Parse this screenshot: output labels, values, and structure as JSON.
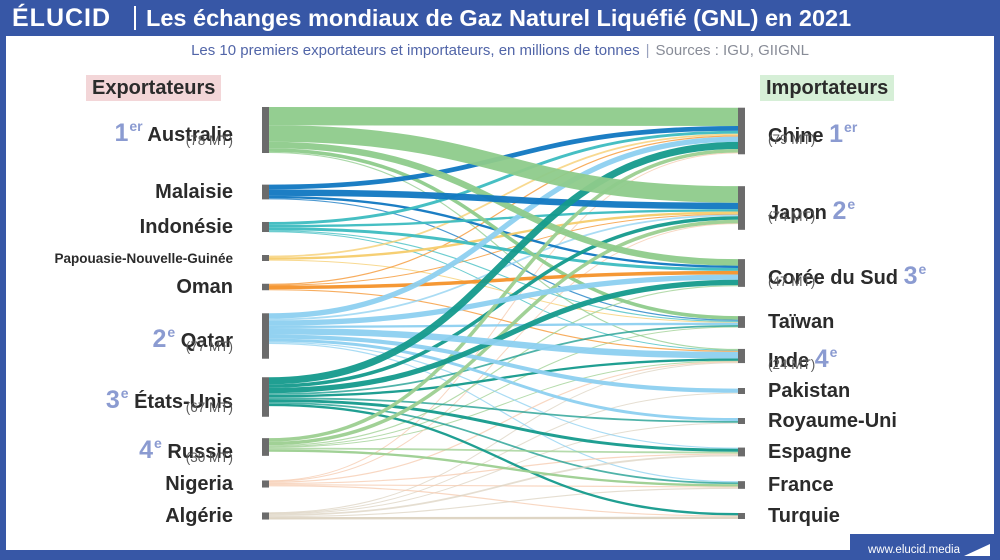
{
  "header": {
    "logo": "ÉLUCID",
    "title": "Les échanges mondiaux de Gaz Naturel Liquéfié (GNL) en 2021",
    "subtitle": "Les 10 premiers exportateurs et importateurs, en millions de tonnes",
    "sources": "Sources : IGU, GIIGNL"
  },
  "column_headers": {
    "exporters": "Exportateurs",
    "importers": "Importateurs"
  },
  "exporters": [
    {
      "name": "Australie",
      "rank": "1",
      "rank_sup": "er",
      "sub": "(78 MT)",
      "value": 78,
      "color": "#8ecb8b"
    },
    {
      "name": "Malaisie",
      "value": 25,
      "color": "#1077c1"
    },
    {
      "name": "Indonésie",
      "value": 17,
      "color": "#3cbcc0"
    },
    {
      "name": "Papouasie-Nouvelle-Guinée",
      "value": 8,
      "color": "#f6cc6b"
    },
    {
      "name": "Oman",
      "value": 11,
      "color": "#f4922a"
    },
    {
      "name": "Qatar",
      "rank": "2",
      "rank_sup": "e",
      "sub": "(77 MT)",
      "value": 77,
      "color": "#8dd0f0"
    },
    {
      "name": "États-Unis",
      "rank": "3",
      "rank_sup": "e",
      "sub": "(67 MT)",
      "value": 67,
      "color": "#149a8c"
    },
    {
      "name": "Russie",
      "rank": "4",
      "rank_sup": "e",
      "sub": "(30 MT)",
      "value": 30,
      "color": "#9ccf90"
    },
    {
      "name": "Nigeria",
      "value": 12,
      "color": "#f6c9ad"
    },
    {
      "name": "Algérie",
      "value": 12,
      "color": "#dcd3c1"
    }
  ],
  "importers": [
    {
      "name": "Chine",
      "rank": "1",
      "rank_sup": "er",
      "sub": "(79 MT)",
      "value": 79
    },
    {
      "name": "Japon",
      "rank": "2",
      "rank_sup": "e",
      "sub": "(74 MT)",
      "value": 74
    },
    {
      "name": "Corée du Sud",
      "rank": "3",
      "rank_sup": "e",
      "sub": "(47 MT)",
      "value": 47
    },
    {
      "name": "Taïwan",
      "value": 20
    },
    {
      "name": "Inde",
      "rank": "4",
      "rank_sup": "e",
      "sub": "(24 MT)",
      "value": 24
    },
    {
      "name": "Pakistan",
      "value": 8
    },
    {
      "name": "Royaume-Uni",
      "value": 10
    },
    {
      "name": "Espagne",
      "value": 15
    },
    {
      "name": "France",
      "value": 13
    },
    {
      "name": "Turquie",
      "value": 10
    }
  ],
  "flows": [
    [
      "Australie",
      "Chine",
      31
    ],
    [
      "Australie",
      "Japon",
      28
    ],
    [
      "Australie",
      "Corée du Sud",
      11
    ],
    [
      "Australie",
      "Taïwan",
      6
    ],
    [
      "Australie",
      "Inde",
      2
    ],
    [
      "Malaisie",
      "Chine",
      8
    ],
    [
      "Malaisie",
      "Japon",
      11
    ],
    [
      "Malaisie",
      "Corée du Sud",
      4
    ],
    [
      "Malaisie",
      "Taïwan",
      2
    ],
    [
      "Indonésie",
      "Chine",
      5
    ],
    [
      "Indonésie",
      "Japon",
      4
    ],
    [
      "Indonésie",
      "Corée du Sud",
      5
    ],
    [
      "Indonésie",
      "Taïwan",
      2
    ],
    [
      "Indonésie",
      "Inde",
      1
    ],
    [
      "Papouasie-Nouvelle-Guinée",
      "Chine",
      3
    ],
    [
      "Papouasie-Nouvelle-Guinée",
      "Japon",
      4
    ],
    [
      "Papouasie-Nouvelle-Guinée",
      "Taïwan",
      1
    ],
    [
      "Oman",
      "Chine",
      2
    ],
    [
      "Oman",
      "Japon",
      1
    ],
    [
      "Oman",
      "Corée du Sud",
      6
    ],
    [
      "Oman",
      "Inde",
      2
    ],
    [
      "Qatar",
      "Chine",
      9
    ],
    [
      "Qatar",
      "Japon",
      3
    ],
    [
      "Qatar",
      "Corée du Sud",
      9
    ],
    [
      "Qatar",
      "Taïwan",
      4
    ],
    [
      "Qatar",
      "Inde",
      11
    ],
    [
      "Qatar",
      "Pakistan",
      7
    ],
    [
      "Qatar",
      "Royaume-Uni",
      5
    ],
    [
      "Qatar",
      "Espagne",
      2
    ],
    [
      "Qatar",
      "France",
      2
    ],
    [
      "États-Unis",
      "Chine",
      12
    ],
    [
      "États-Unis",
      "Japon",
      6
    ],
    [
      "États-Unis",
      "Corée du Sud",
      9
    ],
    [
      "États-Unis",
      "Taïwan",
      3
    ],
    [
      "États-Unis",
      "Inde",
      4
    ],
    [
      "États-Unis",
      "Royaume-Uni",
      3
    ],
    [
      "États-Unis",
      "Espagne",
      5
    ],
    [
      "États-Unis",
      "France",
      3
    ],
    [
      "États-Unis",
      "Turquie",
      4
    ],
    [
      "Russie",
      "Chine",
      6
    ],
    [
      "Russie",
      "Japon",
      6
    ],
    [
      "Russie",
      "Corée du Sud",
      2
    ],
    [
      "Russie",
      "Taïwan",
      1
    ],
    [
      "Russie",
      "Inde",
      1
    ],
    [
      "Russie",
      "Espagne",
      3
    ],
    [
      "Russie",
      "France",
      4
    ],
    [
      "Nigeria",
      "Chine",
      1
    ],
    [
      "Nigeria",
      "Japon",
      1
    ],
    [
      "Nigeria",
      "Inde",
      2
    ],
    [
      "Nigeria",
      "Espagne",
      2
    ],
    [
      "Nigeria",
      "France",
      2
    ],
    [
      "Nigeria",
      "Turquie",
      2
    ],
    [
      "Algérie",
      "Inde",
      1
    ],
    [
      "Algérie",
      "Pakistan",
      1
    ],
    [
      "Algérie",
      "Royaume-Uni",
      1
    ],
    [
      "Algérie",
      "Espagne",
      3
    ],
    [
      "Algérie",
      "France",
      2
    ],
    [
      "Algérie",
      "Turquie",
      4
    ]
  ],
  "footer": {
    "url": "www.elucid.media"
  },
  "colors": {
    "frame": "#3757a6",
    "node_bar": "#6b6b6b",
    "rank": "#8b9bd1"
  }
}
